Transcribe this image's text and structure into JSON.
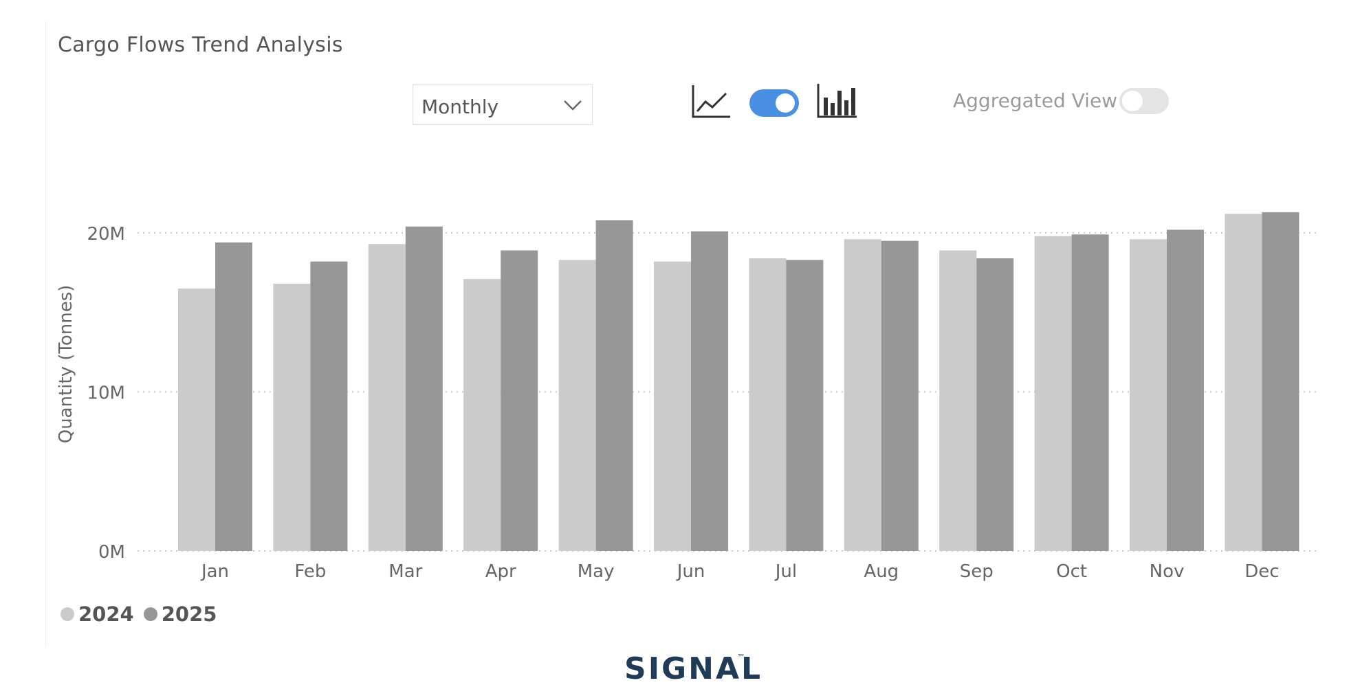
{
  "header": {
    "title": "Cargo Flows Trend Analysis"
  },
  "controls": {
    "period_dropdown": {
      "value": "Monthly"
    },
    "line_chart_icon": "line-chart-icon",
    "chart_toggle_on": true,
    "bar_chart_icon": "bar-chart-icon",
    "aggregated_view_label": "Aggregated View",
    "aggregated_view_on": false
  },
  "legend": [
    {
      "label": "2024",
      "color": "#cbcbcb"
    },
    {
      "label": "2025",
      "color": "#979797"
    }
  ],
  "brand": {
    "name": "SIGNAL",
    "tm": "™"
  },
  "colors": {
    "toggle_on": "#4a90e2",
    "series_2024": "#cbcbcb",
    "series_2025": "#979797",
    "grid": "#c8c8c8",
    "brand": "#1f3b57"
  },
  "chart_data": {
    "type": "bar",
    "title": "Cargo Flows Trend Analysis",
    "xlabel": "",
    "ylabel": "Quantity (Tonnes)",
    "categories": [
      "Jan",
      "Feb",
      "Mar",
      "Apr",
      "May",
      "Jun",
      "Jul",
      "Aug",
      "Sep",
      "Oct",
      "Nov",
      "Dec"
    ],
    "series": [
      {
        "name": "2024",
        "color": "#cbcbcb",
        "values": [
          16.5,
          16.8,
          19.3,
          17.1,
          18.3,
          18.2,
          18.4,
          19.6,
          18.9,
          19.8,
          19.6,
          21.2
        ]
      },
      {
        "name": "2025",
        "color": "#979797",
        "values": [
          19.4,
          18.2,
          20.4,
          18.9,
          20.8,
          20.1,
          18.3,
          19.5,
          18.4,
          19.9,
          20.2,
          21.3
        ]
      }
    ],
    "value_unit": "M",
    "ylim": [
      0,
      23
    ],
    "yticks": [
      {
        "value": 0,
        "label": "0M"
      },
      {
        "value": 10,
        "label": "10M"
      },
      {
        "value": 20,
        "label": "20M"
      }
    ],
    "grid": true,
    "grid_style": "dotted",
    "legend_position": "bottom-left"
  }
}
